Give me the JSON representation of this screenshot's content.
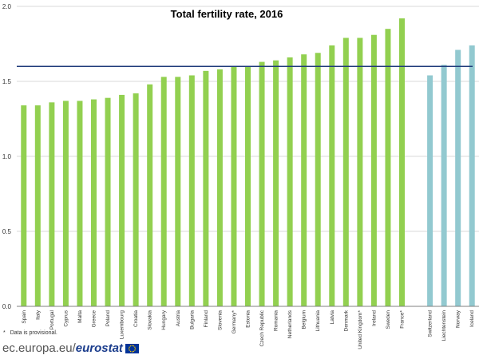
{
  "chart_data": {
    "type": "bar",
    "title": "Total fertility rate, 2016",
    "xlabel": "",
    "ylabel": "",
    "ylim": [
      0,
      2.0
    ],
    "yticks": [
      "0.0",
      "0.5",
      "1.0",
      "1.5",
      "2.0"
    ],
    "reference_line": 1.6,
    "categories": [
      "Spain",
      "Italy",
      "Portugal",
      "Cyprus",
      "Malta",
      "Greece",
      "Poland",
      "Luxembourg",
      "Croatia",
      "Slovakia",
      "Hungary",
      "Austria",
      "Bulgaria",
      "Finland",
      "Slovenia",
      "Germany*",
      "Estonia",
      "Czech Republic",
      "Romania",
      "Netherlands",
      "Belgium",
      "Lithuania",
      "Latvia",
      "Denmark",
      "United Kingdom*",
      "Ireland",
      "Sweden",
      "France*",
      "Switzerland",
      "Liechtenstein",
      "Norway",
      "Iceland"
    ],
    "values": [
      1.34,
      1.34,
      1.36,
      1.37,
      1.37,
      1.38,
      1.39,
      1.41,
      1.42,
      1.48,
      1.53,
      1.53,
      1.54,
      1.57,
      1.58,
      1.6,
      1.6,
      1.63,
      1.64,
      1.66,
      1.68,
      1.69,
      1.74,
      1.79,
      1.79,
      1.81,
      1.85,
      1.92,
      1.54,
      1.61,
      1.71,
      1.74
    ],
    "groups": [
      {
        "count": 28,
        "color": "#92d050"
      },
      {
        "count": 4,
        "color": "#92c9d0"
      }
    ],
    "reference_line_color": "#1f3a7a",
    "grid": true,
    "grid_color": "#d9d9d9"
  },
  "footnote": {
    "marker": "*",
    "text": "Data is provisional."
  },
  "brand": {
    "prefix": "ec.europa.eu/",
    "name": "eurostat"
  }
}
